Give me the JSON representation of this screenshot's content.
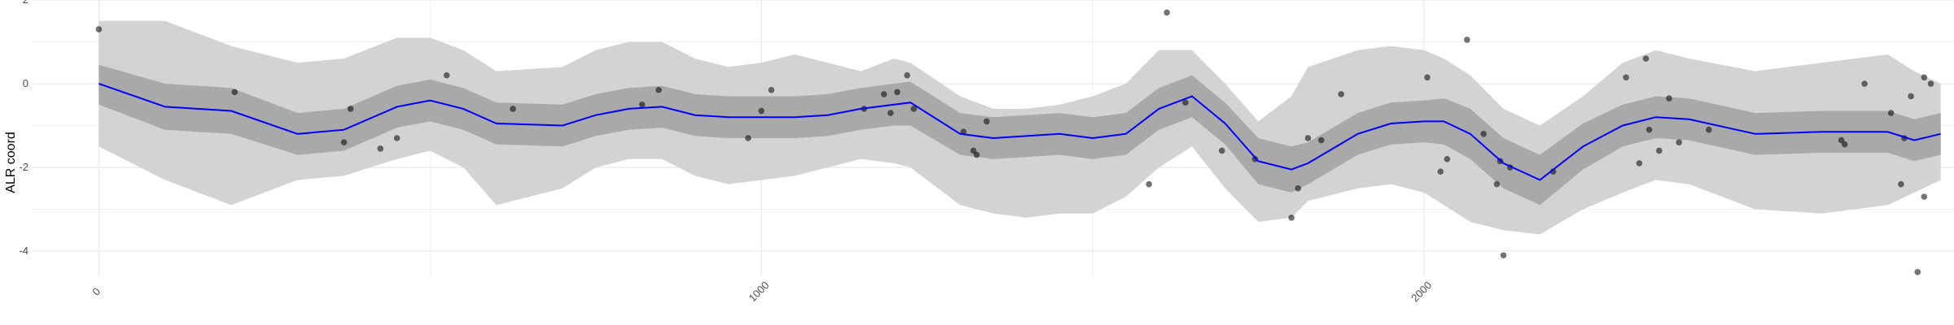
{
  "chart_data": {
    "type": "line",
    "title": "",
    "xlabel": "",
    "ylabel": "ALR coord",
    "xlim": [
      -100,
      2800
    ],
    "ylim": [
      -4.6,
      2.0
    ],
    "x_ticks": [
      0,
      1000,
      2000
    ],
    "y_ticks": [
      -4,
      -2,
      0,
      2
    ],
    "grid": true,
    "colors": {
      "mean_line": "#0000ff",
      "inner_band": "#a9a9a9",
      "outer_band": "#d3d3d3",
      "points": "#000000",
      "grid": "#ebebeb"
    },
    "series": [
      {
        "type": "line",
        "x": [
          0,
          100,
          200,
          300,
          370,
          450,
          500,
          550,
          600,
          700,
          750,
          800,
          850,
          900,
          950,
          1000,
          1050,
          1100,
          1150,
          1200,
          1225,
          1300,
          1350,
          1400,
          1450,
          1500,
          1550,
          1600,
          1650,
          1700,
          1750,
          1800,
          1825,
          1900,
          1950,
          2000,
          2030,
          2070,
          2120,
          2175,
          2240,
          2300,
          2350,
          2400,
          2500,
          2600,
          2700,
          2740,
          2780
        ],
        "y": [
          0.0,
          -0.55,
          -0.65,
          -1.2,
          -1.1,
          -0.55,
          -0.4,
          -0.6,
          -0.95,
          -1.0,
          -0.75,
          -0.6,
          -0.55,
          -0.75,
          -0.8,
          -0.8,
          -0.8,
          -0.75,
          -0.6,
          -0.5,
          -0.45,
          -1.2,
          -1.3,
          -1.25,
          -1.2,
          -1.3,
          -1.2,
          -0.6,
          -0.3,
          -0.95,
          -1.85,
          -2.05,
          -1.9,
          -1.2,
          -0.95,
          -0.9,
          -0.9,
          -1.2,
          -1.9,
          -2.3,
          -1.5,
          -1.0,
          -0.8,
          -0.85,
          -1.2,
          -1.15,
          -1.15,
          -1.35,
          -1.2
        ]
      },
      {
        "type": "band",
        "x": [
          0,
          100,
          200,
          300,
          370,
          450,
          500,
          550,
          600,
          700,
          750,
          800,
          850,
          900,
          950,
          1000,
          1050,
          1100,
          1150,
          1200,
          1225,
          1300,
          1350,
          1400,
          1450,
          1500,
          1550,
          1600,
          1650,
          1700,
          1750,
          1800,
          1825,
          1900,
          1950,
          2000,
          2030,
          2070,
          2120,
          2175,
          2240,
          2300,
          2350,
          2400,
          2500,
          2600,
          2700,
          2740,
          2780
        ],
        "lower": [
          -0.5,
          -1.1,
          -1.2,
          -1.7,
          -1.6,
          -1.05,
          -0.9,
          -1.1,
          -1.45,
          -1.5,
          -1.25,
          -1.1,
          -1.05,
          -1.25,
          -1.3,
          -1.3,
          -1.3,
          -1.25,
          -1.1,
          -1.0,
          -1.0,
          -1.7,
          -1.8,
          -1.75,
          -1.7,
          -1.8,
          -1.7,
          -1.1,
          -0.8,
          -1.45,
          -2.4,
          -2.6,
          -2.4,
          -1.7,
          -1.45,
          -1.4,
          -1.45,
          -1.8,
          -2.5,
          -2.9,
          -2.05,
          -1.5,
          -1.3,
          -1.35,
          -1.7,
          -1.65,
          -1.65,
          -1.85,
          -1.7
        ],
        "upper": [
          0.45,
          0.0,
          -0.1,
          -0.7,
          -0.6,
          -0.05,
          0.1,
          -0.1,
          -0.45,
          -0.5,
          -0.25,
          -0.1,
          -0.05,
          -0.25,
          -0.3,
          -0.3,
          -0.3,
          -0.25,
          -0.1,
          0.0,
          0.05,
          -0.7,
          -0.8,
          -0.75,
          -0.7,
          -0.8,
          -0.7,
          -0.1,
          0.2,
          -0.45,
          -1.3,
          -1.5,
          -1.4,
          -0.7,
          -0.45,
          -0.4,
          -0.35,
          -0.6,
          -1.3,
          -1.7,
          -0.95,
          -0.5,
          -0.3,
          -0.35,
          -0.7,
          -0.65,
          -0.65,
          -0.85,
          -0.7
        ]
      },
      {
        "type": "band",
        "x": [
          0,
          100,
          200,
          300,
          370,
          450,
          500,
          550,
          600,
          700,
          750,
          800,
          850,
          900,
          950,
          1000,
          1050,
          1100,
          1150,
          1200,
          1225,
          1300,
          1350,
          1400,
          1450,
          1500,
          1550,
          1600,
          1650,
          1700,
          1750,
          1800,
          1825,
          1900,
          1950,
          2000,
          2030,
          2070,
          2120,
          2175,
          2240,
          2300,
          2350,
          2400,
          2500,
          2600,
          2700,
          2740,
          2780
        ],
        "lower": [
          -1.5,
          -2.3,
          -2.9,
          -2.3,
          -2.2,
          -1.8,
          -1.6,
          -2.0,
          -2.9,
          -2.5,
          -2.0,
          -1.8,
          -1.8,
          -2.2,
          -2.4,
          -2.3,
          -2.2,
          -2.0,
          -1.8,
          -1.9,
          -2.0,
          -2.9,
          -3.1,
          -3.2,
          -3.1,
          -3.1,
          -2.7,
          -2.0,
          -1.5,
          -2.5,
          -3.3,
          -3.2,
          -2.8,
          -2.5,
          -2.4,
          -2.6,
          -2.9,
          -3.3,
          -3.5,
          -3.6,
          -3.0,
          -2.6,
          -2.3,
          -2.4,
          -3.0,
          -3.1,
          -2.9,
          -2.6,
          -2.3
        ],
        "upper": [
          1.5,
          1.5,
          0.9,
          0.5,
          0.6,
          1.1,
          1.1,
          0.8,
          0.3,
          0.4,
          0.8,
          1.0,
          1.0,
          0.6,
          0.4,
          0.5,
          0.7,
          0.5,
          0.3,
          0.6,
          0.5,
          -0.3,
          -0.6,
          -0.6,
          -0.5,
          -0.3,
          0.0,
          0.8,
          0.8,
          0.0,
          -0.9,
          -0.3,
          0.4,
          0.8,
          0.9,
          0.8,
          0.6,
          0.2,
          -0.6,
          -1.0,
          -0.3,
          0.5,
          0.8,
          0.6,
          0.3,
          0.5,
          0.7,
          0.3,
          0.0
        ]
      },
      {
        "type": "scatter",
        "x": [
          0,
          205,
          370,
          380,
          425,
          450,
          525,
          625,
          820,
          845,
          980,
          1000,
          1015,
          1155,
          1185,
          1195,
          1205,
          1220,
          1230,
          1305,
          1320,
          1325,
          1340,
          1585,
          1612,
          1640,
          1695,
          1745,
          1800,
          1810,
          1825,
          1845,
          1875,
          2005,
          2025,
          2035,
          2065,
          2090,
          2110,
          2115,
          2120,
          2130,
          2195,
          2305,
          2325,
          2335,
          2340,
          2355,
          2370,
          2385,
          2430,
          2630,
          2635,
          2665,
          2705,
          2720,
          2725,
          2735,
          2745,
          2755,
          2755,
          2765
        ],
        "y": [
          1.3,
          -0.2,
          -1.4,
          -0.6,
          -1.55,
          -1.3,
          0.2,
          -0.6,
          -0.5,
          -0.15,
          -1.3,
          -0.65,
          -0.15,
          -0.6,
          -0.25,
          -0.7,
          -0.2,
          0.2,
          -0.6,
          -1.15,
          -1.6,
          -1.7,
          -0.9,
          -2.4,
          1.7,
          -0.45,
          -1.6,
          -1.8,
          -3.2,
          -2.5,
          -1.3,
          -1.35,
          -0.25,
          0.15,
          -2.1,
          -1.8,
          1.05,
          -1.2,
          -2.4,
          -1.85,
          -4.1,
          -2.0,
          -2.1,
          0.15,
          -1.9,
          0.6,
          -1.1,
          -1.6,
          -0.35,
          -1.4,
          -1.1,
          -1.35,
          -1.45,
          0.0,
          -0.7,
          -2.4,
          -1.3,
          -0.3,
          -4.5,
          -2.7,
          0.15,
          0.0
        ]
      }
    ]
  }
}
